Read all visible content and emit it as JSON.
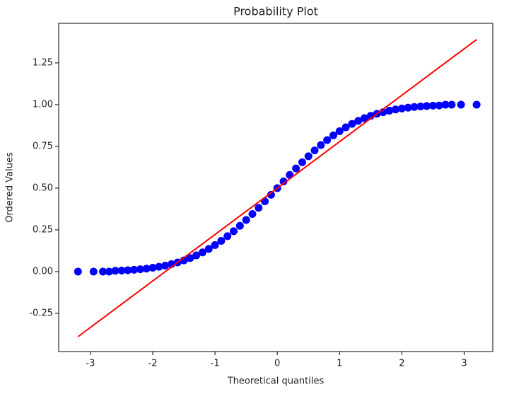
{
  "chart_data": {
    "type": "scatter",
    "title": "Probability Plot",
    "x_label": "Theoretical quantiles",
    "y_label": "Ordered Values",
    "xlim": [
      -3.51,
      3.46
    ],
    "ylim": [
      -0.479,
      1.487
    ],
    "xticks": [
      -3,
      -2,
      -1,
      0,
      1,
      2,
      3
    ],
    "yticks": [
      {
        "value": -0.25,
        "label": "-0.25"
      },
      {
        "value": 0,
        "label": "0.00"
      },
      {
        "value": 0.25,
        "label": "0.25"
      },
      {
        "value": 0.5,
        "label": "0.50"
      },
      {
        "value": 0.75,
        "label": "0.75"
      },
      {
        "value": 1,
        "label": "1.00"
      },
      {
        "value": 1.25,
        "label": "1.25"
      }
    ],
    "color": "#0000ff",
    "x": [
      -3.2,
      -2.95,
      -2.8,
      -2.7,
      -2.6,
      -2.5,
      -2.4,
      -2.3,
      -2.2,
      -2.1,
      -2.0,
      -1.9,
      -1.8,
      -1.7,
      -1.6,
      -1.5,
      -1.4,
      -1.3,
      -1.2,
      -1.1,
      -1.0,
      -0.9,
      -0.8,
      -0.7,
      -0.6,
      -0.5,
      -0.4,
      -0.3,
      -0.2,
      -0.1,
      0,
      0.1,
      0.2,
      0.3,
      0.4,
      0.5,
      0.6,
      0.7,
      0.8,
      0.9,
      1.0,
      1.1,
      1.2,
      1.3,
      1.4,
      1.5,
      1.6,
      1.7,
      1.8,
      1.9,
      2.0,
      2.1,
      2.2,
      2.3,
      2.4,
      2.5,
      2.6,
      2.7,
      2.8,
      2.95,
      3.2
    ],
    "values": [
      0.0,
      0.0,
      0.0,
      0.0,
      0.005,
      0.006,
      0.008,
      0.011,
      0.014,
      0.018,
      0.023,
      0.029,
      0.036,
      0.045,
      0.055,
      0.067,
      0.081,
      0.097,
      0.115,
      0.136,
      0.159,
      0.184,
      0.212,
      0.242,
      0.274,
      0.309,
      0.345,
      0.382,
      0.421,
      0.46,
      0.5,
      0.54,
      0.579,
      0.618,
      0.655,
      0.691,
      0.726,
      0.758,
      0.788,
      0.816,
      0.841,
      0.864,
      0.885,
      0.903,
      0.919,
      0.933,
      0.945,
      0.955,
      0.964,
      0.971,
      0.977,
      0.982,
      0.986,
      0.989,
      0.992,
      0.994,
      0.995,
      1.0,
      1.0,
      1.0,
      1.0
    ],
    "fit_line": {
      "color": "#ff0000",
      "x": [
        -3.2,
        3.2
      ],
      "values": [
        -0.39,
        1.39
      ]
    }
  }
}
